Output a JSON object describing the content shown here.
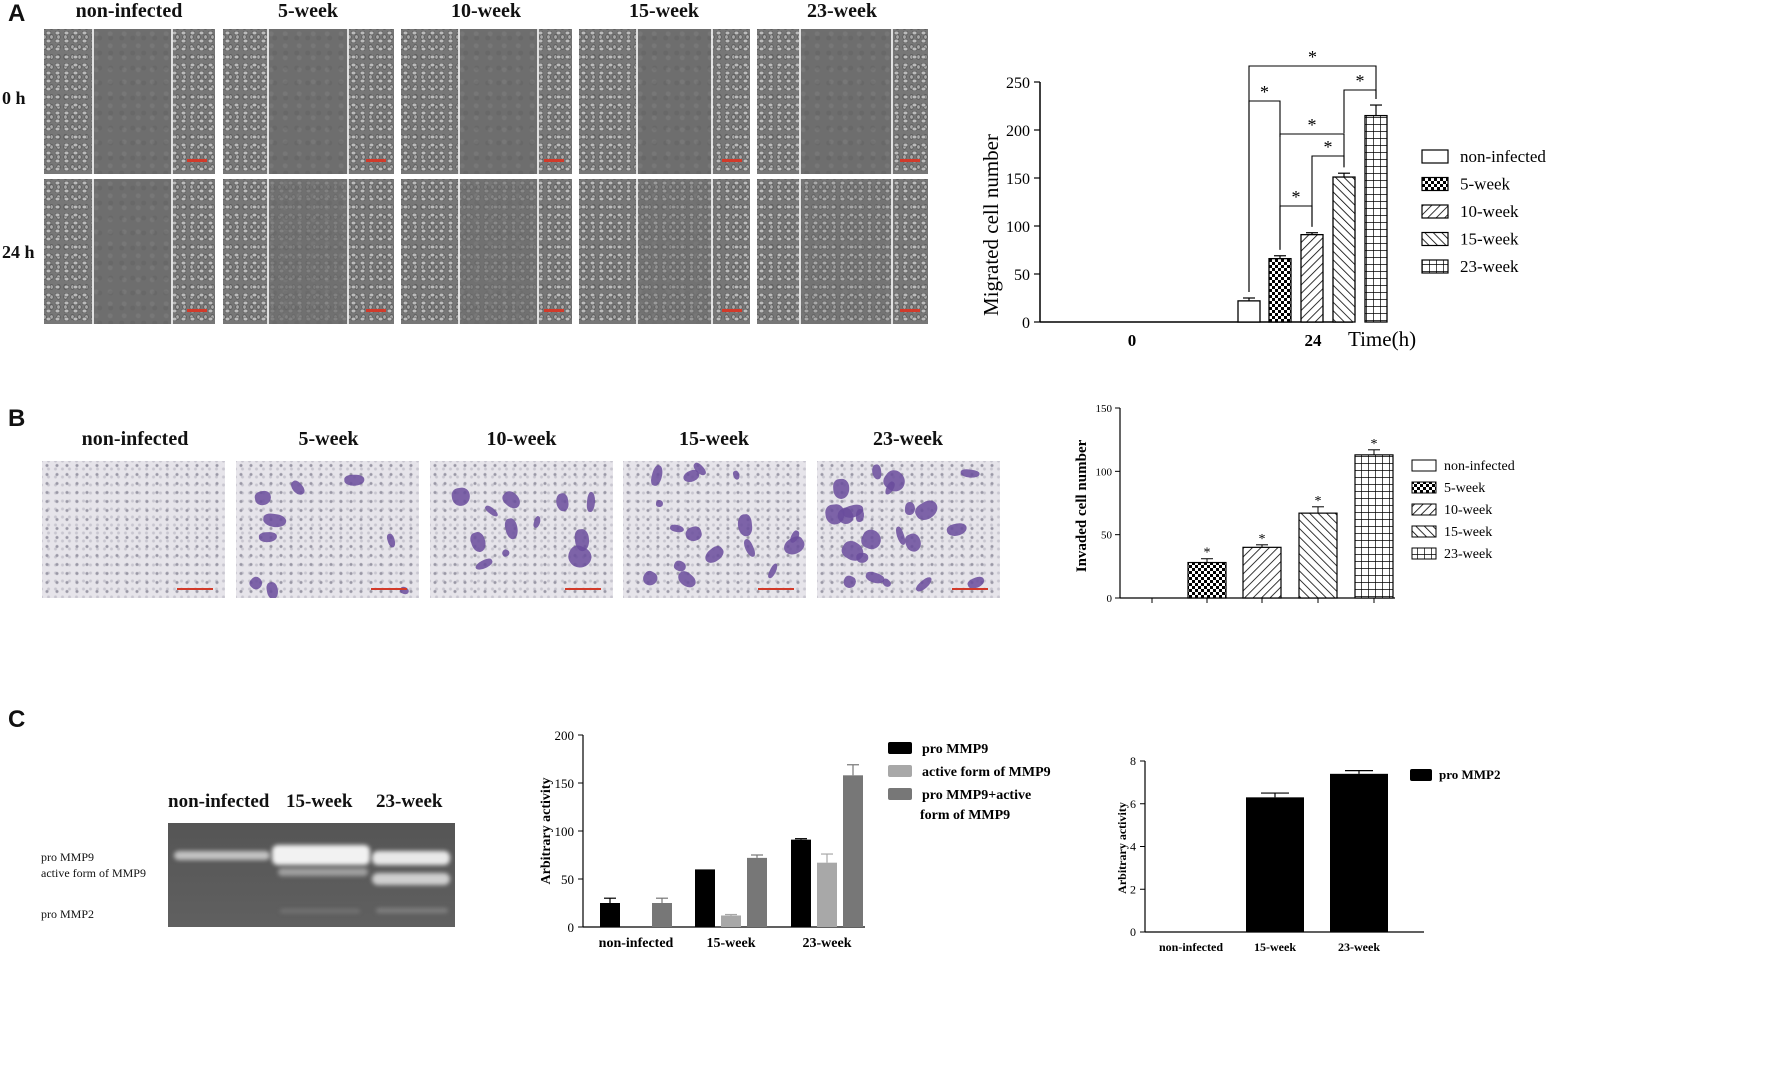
{
  "panelA": {
    "letter": "A",
    "columns": [
      "non-infected",
      "5-week",
      "10-week",
      "15-week",
      "23-week"
    ],
    "rows": [
      "0 h",
      "24 h"
    ],
    "chart": {
      "ylabel": "Migrated cell number",
      "xlabel": "Time(h)",
      "yticks": [
        "250",
        "200",
        "150",
        "100",
        "50",
        "0"
      ],
      "xticks": [
        "0",
        "24"
      ],
      "legend": [
        "non-infected",
        "5-week",
        "10-week",
        "15-week",
        "23-week"
      ],
      "sig": "*"
    }
  },
  "panelB": {
    "letter": "B",
    "columns": [
      "non-infected",
      "5-week",
      "10-week",
      "15-week",
      "23-week"
    ],
    "chart": {
      "ylabel": "Invaded cell number",
      "yticks": [
        "150",
        "100",
        "50",
        "0"
      ],
      "legend": [
        "non-infected",
        "5-week",
        "10-week",
        "15-week",
        "23-week"
      ],
      "sig": "*"
    }
  },
  "panelC": {
    "letter": "C",
    "gel": {
      "lanes": [
        "non-infected",
        "15-week",
        "23-week"
      ],
      "bands": [
        "pro MMP9",
        "active form of MMP9",
        "pro MMP2"
      ]
    },
    "chart1": {
      "ylabel": "Arbitrary activity",
      "yticks": [
        "200",
        "150",
        "100",
        "50",
        "0"
      ],
      "legend": [
        "pro MMP9",
        "active form of MMP9",
        "pro MMP9+active",
        "form of MMP9"
      ]
    },
    "chart2": {
      "ylabel": "Arbitrary activity",
      "yticks": [
        "8",
        "6",
        "4",
        "2",
        "0"
      ],
      "legend": [
        "pro MMP2"
      ]
    }
  },
  "chart_data": [
    {
      "type": "bar",
      "x": [
        "0",
        "24"
      ],
      "xlabel": "Time(h)",
      "ylabel": "Migrated cell number",
      "ylim": [
        0,
        250
      ],
      "series": [
        {
          "name": "non-infected",
          "values": [
            0,
            22
          ],
          "error": [
            0,
            3
          ]
        },
        {
          "name": "5-week",
          "values": [
            0,
            66
          ],
          "error": [
            0,
            3
          ]
        },
        {
          "name": "10-week",
          "values": [
            0,
            91
          ],
          "error": [
            0,
            2
          ]
        },
        {
          "name": "15-week",
          "values": [
            0,
            151
          ],
          "error": [
            0,
            4
          ]
        },
        {
          "name": "23-week",
          "values": [
            0,
            215
          ],
          "error": [
            0,
            11
          ]
        }
      ],
      "legend_position": "right"
    },
    {
      "type": "bar",
      "categories": [
        "non-infected",
        "5-week",
        "10-week",
        "15-week",
        "23-week"
      ],
      "ylabel": "Invaded cell number",
      "ylim": [
        0,
        150
      ],
      "values": [
        0,
        28,
        40,
        67,
        113
      ],
      "error": [
        0,
        3,
        2,
        5,
        4
      ],
      "legend_position": "right"
    },
    {
      "type": "bar",
      "categories": [
        "non-infected",
        "15-week",
        "23-week"
      ],
      "ylabel": "Arbitrary activity",
      "ylim": [
        0,
        200
      ],
      "series": [
        {
          "name": "pro MMP9",
          "values": [
            25,
            60,
            91
          ],
          "error": [
            5,
            0,
            1
          ],
          "color": "#000000"
        },
        {
          "name": "active form of MMP9",
          "values": [
            0,
            12,
            67
          ],
          "error": [
            0,
            1,
            9
          ],
          "color": "#a8a8a8"
        },
        {
          "name": "pro MMP9+active form of MMP9",
          "values": [
            25,
            72,
            158
          ],
          "error": [
            5,
            3,
            11
          ],
          "color": "#777777"
        }
      ],
      "legend_position": "right"
    },
    {
      "type": "bar",
      "categories": [
        "non-infected",
        "15-week",
        "23-week"
      ],
      "ylabel": "Arbitrary activity",
      "ylim": [
        0,
        8
      ],
      "series": [
        {
          "name": "pro MMP2",
          "values": [
            0,
            6.3,
            7.4
          ],
          "error": [
            0,
            0.2,
            0.15
          ],
          "color": "#000000"
        }
      ],
      "legend_position": "top-right"
    }
  ]
}
